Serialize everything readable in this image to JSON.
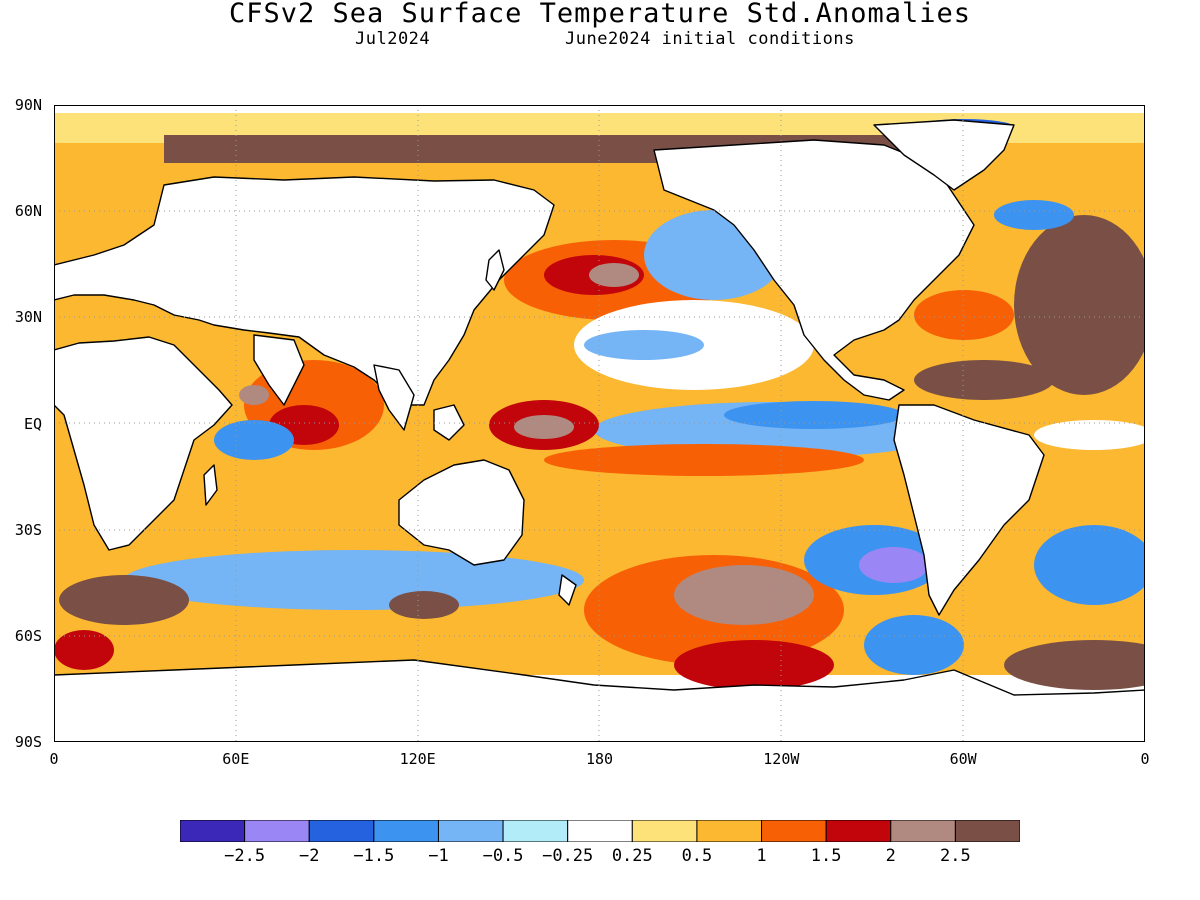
{
  "header": {
    "title": "CFSv2 Sea Surface Temperature Std.Anomalies",
    "valid_month": "Jul2024",
    "init_conditions": "June2024 initial conditions"
  },
  "axes": {
    "lat_labels": [
      "90N",
      "60N",
      "30N",
      "EQ",
      "30S",
      "60S",
      "90S"
    ],
    "lat_values": [
      90,
      60,
      30,
      0,
      -30,
      -60,
      -90
    ],
    "lon_labels": [
      "0",
      "60E",
      "120E",
      "180",
      "120W",
      "60W",
      "0"
    ],
    "lon_values": [
      0,
      60,
      120,
      180,
      240,
      300,
      360
    ]
  },
  "legend": {
    "colors": [
      "#3b27b8",
      "#9a87f5",
      "#2462e0",
      "#3d93f0",
      "#75b4f5",
      "#b2ecf9",
      "#ffffff",
      "#fde27a",
      "#fbb830",
      "#f86006",
      "#c1050a",
      "#b08a80",
      "#7a5046"
    ],
    "labels": [
      "-2.5",
      "-2",
      "-1.5",
      "-1",
      "-0.5",
      "-0.25",
      "0.25",
      "0.5",
      "1",
      "1.5",
      "2",
      "2.5"
    ],
    "ocean_base_color": "#fbb830",
    "land_color": "#ffffff"
  }
}
